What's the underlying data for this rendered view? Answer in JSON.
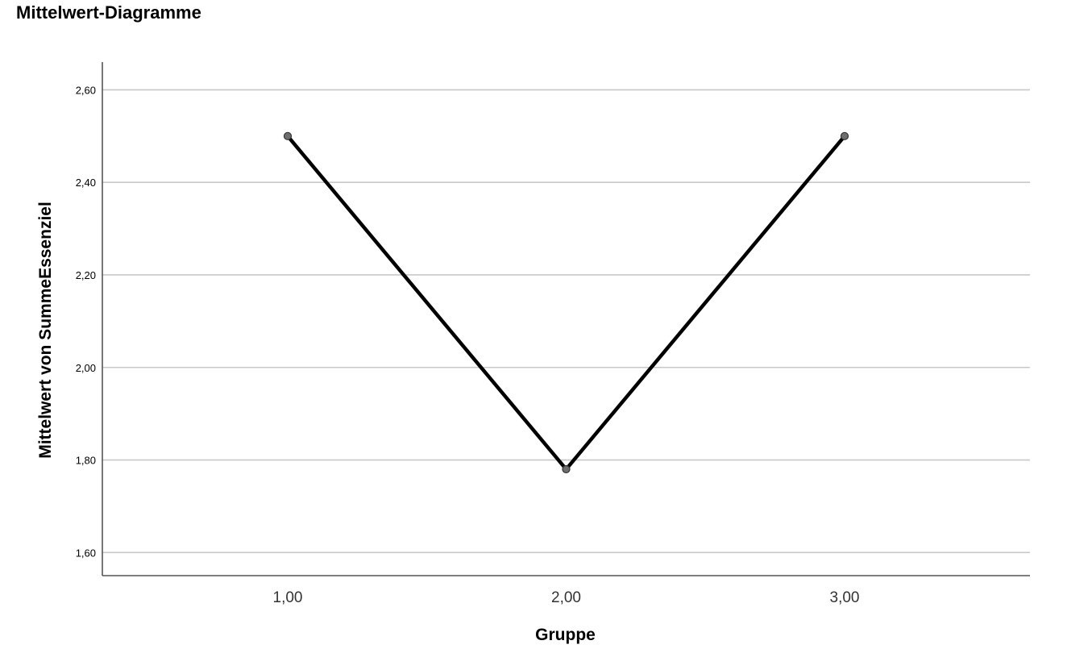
{
  "page": {
    "title": "Mittelwert-Diagramme"
  },
  "chart_data": {
    "type": "line",
    "title": "",
    "xlabel": "Gruppe",
    "ylabel": "Mittelwert von SummeEssenziel",
    "categories": [
      "1,00",
      "2,00",
      "3,00"
    ],
    "series": [
      {
        "values": [
          2.5,
          1.78,
          2.5
        ]
      }
    ],
    "ylim": [
      1.55,
      2.66
    ],
    "yticks": [
      1.6,
      1.8,
      2.0,
      2.2,
      2.4,
      2.6
    ],
    "ytick_labels": [
      "1,60",
      "1,80",
      "2,00",
      "2,20",
      "2,40",
      "2,60"
    ],
    "grid": true,
    "legend": "none",
    "colors": {
      "line": "#000000",
      "marker": "#6e6e6e",
      "grid": "#c8c8c8",
      "axis": "#555555"
    }
  }
}
